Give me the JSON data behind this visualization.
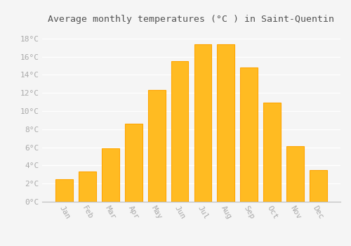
{
  "months": [
    "Jan",
    "Feb",
    "Mar",
    "Apr",
    "May",
    "Jun",
    "Jul",
    "Aug",
    "Sep",
    "Oct",
    "Nov",
    "Dec"
  ],
  "temperatures": [
    2.5,
    3.3,
    5.9,
    8.6,
    12.3,
    15.5,
    17.4,
    17.4,
    14.8,
    10.9,
    6.1,
    3.5
  ],
  "bar_color": "#FFBB22",
  "bar_edge_color": "#FFA500",
  "background_color": "#F5F5F5",
  "grid_color": "#FFFFFF",
  "title": "Average monthly temperatures (°C ) in Saint-Quentin",
  "title_fontsize": 9.5,
  "tick_label_color": "#AAAAAA",
  "ylim": [
    0,
    19
  ],
  "yticks": [
    0,
    2,
    4,
    6,
    8,
    10,
    12,
    14,
    16,
    18
  ],
  "ytick_labels": [
    "0°C",
    "2°C",
    "4°C",
    "6°C",
    "8°C",
    "10°C",
    "12°C",
    "14°C",
    "16°C",
    "18°C"
  ],
  "font_family": "monospace",
  "bar_width": 0.75
}
